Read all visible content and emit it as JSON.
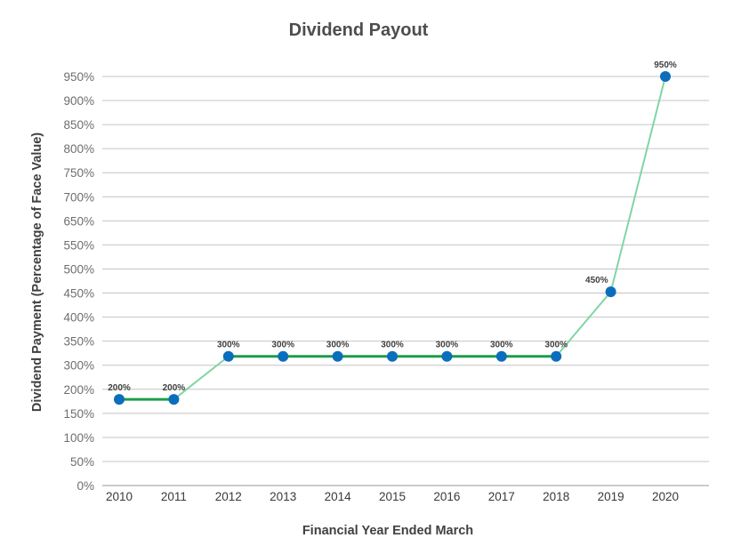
{
  "chart_data": {
    "type": "line",
    "title": "Dividend Payout",
    "xlabel": "Financial Year Ended March",
    "ylabel": "Dividend Payment (Percentage of Face Value)",
    "categories": [
      "2010",
      "2011",
      "2012",
      "2013",
      "2014",
      "2015",
      "2016",
      "2017",
      "2018",
      "2019",
      "2020"
    ],
    "series": [
      {
        "values": [
          200,
          200,
          300,
          300,
          300,
          300,
          300,
          300,
          300,
          450,
          950
        ],
        "data_labels": [
          "200%",
          "200%",
          "300%",
          "300%",
          "300%",
          "300%",
          "300%",
          "300%",
          "300%",
          "450%",
          "950%"
        ]
      }
    ],
    "y_ticks": [
      {
        "label": "0%",
        "value": 0
      },
      {
        "label": "50%",
        "value": 50
      },
      {
        "label": "100%",
        "value": 100
      },
      {
        "label": "150%",
        "value": 150
      },
      {
        "label": "200%",
        "value": 200
      },
      {
        "label": "300%",
        "value": 300
      },
      {
        "label": "350%",
        "value": 350
      },
      {
        "label": "400%",
        "value": 400
      },
      {
        "label": "450%",
        "value": 450
      },
      {
        "label": "500%",
        "value": 500
      },
      {
        "label": "550%",
        "value": 550
      },
      {
        "label": "650%",
        "value": 650
      },
      {
        "label": "700%",
        "value": 700
      },
      {
        "label": "750%",
        "value": 750
      },
      {
        "label": "800%",
        "value": 800
      },
      {
        "label": "850%",
        "value": 850
      },
      {
        "label": "900%",
        "value": 900
      },
      {
        "label": "950%",
        "value": 950
      }
    ],
    "ylim": [
      0,
      950
    ],
    "grid": true,
    "legend": "none",
    "colors": {
      "marker": "#0a6ebd",
      "flat_segment": "#1a9e4a",
      "rising_segment": "#7fd6a3"
    }
  }
}
